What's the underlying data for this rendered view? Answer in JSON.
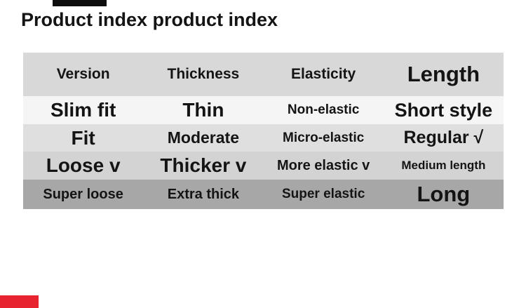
{
  "page": {
    "title": "Product index product index"
  },
  "colors": {
    "accent_red": "#e82330",
    "top_bar_black": "#0d0d0d",
    "header_row_bg": "#d8d8d8",
    "row1_bg": "#f5f5f5",
    "row2_bg": "#dfdfdf",
    "row3_bg": "#d3d3d3",
    "row4_bg": "#a7a7a7",
    "text": "#141414"
  },
  "table": {
    "headers": [
      "Version",
      "Thickness",
      "Elasticity",
      "Length"
    ],
    "rows": [
      {
        "cells": [
          "Slim fit",
          "Thin",
          "Non-elastic",
          "Short style"
        ]
      },
      {
        "cells": [
          "Fit",
          "Moderate",
          "Micro-elastic",
          "Regular √"
        ]
      },
      {
        "cells": [
          "Loose v",
          "Thicker v",
          "More elastic v",
          "Medium length"
        ]
      },
      {
        "cells": [
          "Super loose",
          "Extra thick",
          "Super elastic",
          "Long"
        ]
      }
    ]
  }
}
